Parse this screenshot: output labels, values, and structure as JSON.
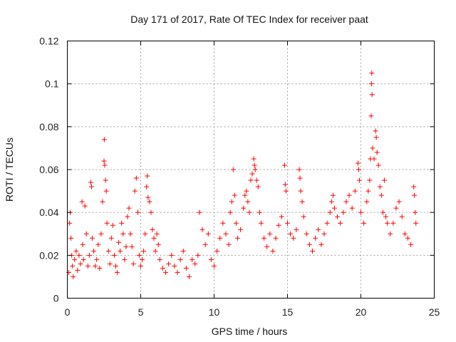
{
  "chart_data": {
    "type": "scatter",
    "title": "Day 171 of 2017, Rate Of TEC Index for receiver paat",
    "xlabel": "GPS time / hours",
    "ylabel": "ROTI / TECUs",
    "xlim": [
      0,
      25
    ],
    "ylim": [
      0,
      0.12
    ],
    "x_ticks": [
      0,
      5,
      10,
      15,
      20,
      25
    ],
    "x_tick_labels": [
      "0",
      "5",
      "10",
      "15",
      "20",
      "25"
    ],
    "y_ticks": [
      0,
      0.02,
      0.04,
      0.06,
      0.08,
      0.1,
      0.12
    ],
    "y_tick_labels": [
      "0",
      "0.02",
      "0.04",
      "0.06",
      "0.08",
      "0.1",
      "0.12"
    ],
    "grid": true,
    "marker": "plus",
    "color": "#ff0000",
    "points": [
      [
        0.1,
        0.012
      ],
      [
        0.15,
        0.035
      ],
      [
        0.2,
        0.04
      ],
      [
        0.25,
        0.028
      ],
      [
        0.3,
        0.02
      ],
      [
        0.35,
        0.015
      ],
      [
        0.4,
        0.01
      ],
      [
        0.5,
        0.018
      ],
      [
        0.6,
        0.022
      ],
      [
        0.7,
        0.013
      ],
      [
        0.8,
        0.02
      ],
      [
        0.9,
        0.016
      ],
      [
        1.0,
        0.045
      ],
      [
        1.05,
        0.025
      ],
      [
        1.1,
        0.018
      ],
      [
        1.2,
        0.043
      ],
      [
        1.3,
        0.03
      ],
      [
        1.4,
        0.015
      ],
      [
        1.5,
        0.02
      ],
      [
        1.6,
        0.054
      ],
      [
        1.65,
        0.052
      ],
      [
        1.7,
        0.028
      ],
      [
        1.8,
        0.022
      ],
      [
        1.9,
        0.015
      ],
      [
        2.0,
        0.018
      ],
      [
        2.1,
        0.025
      ],
      [
        2.2,
        0.014
      ],
      [
        2.3,
        0.03
      ],
      [
        2.4,
        0.045
      ],
      [
        2.5,
        0.064
      ],
      [
        2.52,
        0.074
      ],
      [
        2.55,
        0.062
      ],
      [
        2.6,
        0.055
      ],
      [
        2.65,
        0.05
      ],
      [
        2.7,
        0.035
      ],
      [
        2.8,
        0.022
      ],
      [
        2.9,
        0.016
      ],
      [
        3.0,
        0.028
      ],
      [
        3.1,
        0.034
      ],
      [
        3.2,
        0.02
      ],
      [
        3.3,
        0.015
      ],
      [
        3.4,
        0.012
      ],
      [
        3.5,
        0.026
      ],
      [
        3.6,
        0.022
      ],
      [
        3.7,
        0.035
      ],
      [
        3.8,
        0.03
      ],
      [
        3.9,
        0.018
      ],
      [
        4.0,
        0.024
      ],
      [
        4.1,
        0.038
      ],
      [
        4.2,
        0.042
      ],
      [
        4.3,
        0.03
      ],
      [
        4.4,
        0.024
      ],
      [
        4.5,
        0.016
      ],
      [
        4.6,
        0.05
      ],
      [
        4.7,
        0.056
      ],
      [
        4.8,
        0.04
      ],
      [
        4.9,
        0.02
      ],
      [
        5.0,
        0.015
      ],
      [
        5.1,
        0.018
      ],
      [
        5.2,
        0.022
      ],
      [
        5.3,
        0.03
      ],
      [
        5.4,
        0.052
      ],
      [
        5.45,
        0.057
      ],
      [
        5.5,
        0.047
      ],
      [
        5.6,
        0.045
      ],
      [
        5.7,
        0.04
      ],
      [
        5.8,
        0.032
      ],
      [
        5.9,
        0.028
      ],
      [
        6.0,
        0.022
      ],
      [
        6.1,
        0.03
      ],
      [
        6.2,
        0.025
      ],
      [
        6.3,
        0.018
      ],
      [
        6.5,
        0.014
      ],
      [
        6.7,
        0.012
      ],
      [
        6.9,
        0.016
      ],
      [
        7.1,
        0.02
      ],
      [
        7.3,
        0.015
      ],
      [
        7.5,
        0.012
      ],
      [
        7.7,
        0.018
      ],
      [
        7.9,
        0.022
      ],
      [
        8.1,
        0.014
      ],
      [
        8.3,
        0.01
      ],
      [
        8.5,
        0.018
      ],
      [
        8.7,
        0.016
      ],
      [
        8.9,
        0.02
      ],
      [
        9.0,
        0.04
      ],
      [
        9.2,
        0.032
      ],
      [
        9.4,
        0.025
      ],
      [
        9.6,
        0.03
      ],
      [
        9.8,
        0.018
      ],
      [
        10.0,
        0.015
      ],
      [
        10.2,
        0.022
      ],
      [
        10.4,
        0.028
      ],
      [
        10.6,
        0.035
      ],
      [
        10.8,
        0.03
      ],
      [
        11.0,
        0.025
      ],
      [
        11.1,
        0.04
      ],
      [
        11.2,
        0.045
      ],
      [
        11.3,
        0.06
      ],
      [
        11.4,
        0.048
      ],
      [
        11.5,
        0.035
      ],
      [
        11.6,
        0.028
      ],
      [
        11.8,
        0.032
      ],
      [
        12.0,
        0.042
      ],
      [
        12.1,
        0.048
      ],
      [
        12.2,
        0.05
      ],
      [
        12.3,
        0.045
      ],
      [
        12.4,
        0.04
      ],
      [
        12.5,
        0.055
      ],
      [
        12.6,
        0.058
      ],
      [
        12.7,
        0.065
      ],
      [
        12.75,
        0.062
      ],
      [
        12.8,
        0.06
      ],
      [
        12.9,
        0.055
      ],
      [
        13.0,
        0.052
      ],
      [
        13.1,
        0.04
      ],
      [
        13.2,
        0.035
      ],
      [
        13.4,
        0.028
      ],
      [
        13.6,
        0.024
      ],
      [
        13.8,
        0.03
      ],
      [
        14.0,
        0.022
      ],
      [
        14.2,
        0.028
      ],
      [
        14.4,
        0.034
      ],
      [
        14.6,
        0.038
      ],
      [
        14.8,
        0.062
      ],
      [
        14.85,
        0.053
      ],
      [
        14.9,
        0.05
      ],
      [
        15.0,
        0.035
      ],
      [
        15.2,
        0.03
      ],
      [
        15.4,
        0.028
      ],
      [
        15.6,
        0.032
      ],
      [
        15.8,
        0.06
      ],
      [
        15.85,
        0.056
      ],
      [
        15.9,
        0.05
      ],
      [
        16.0,
        0.045
      ],
      [
        16.1,
        0.038
      ],
      [
        16.3,
        0.03
      ],
      [
        16.5,
        0.025
      ],
      [
        16.7,
        0.022
      ],
      [
        16.9,
        0.028
      ],
      [
        17.1,
        0.032
      ],
      [
        17.3,
        0.025
      ],
      [
        17.5,
        0.03
      ],
      [
        17.7,
        0.035
      ],
      [
        17.9,
        0.04
      ],
      [
        18.0,
        0.045
      ],
      [
        18.1,
        0.048
      ],
      [
        18.2,
        0.042
      ],
      [
        18.4,
        0.038
      ],
      [
        18.6,
        0.035
      ],
      [
        18.8,
        0.04
      ],
      [
        19.0,
        0.045
      ],
      [
        19.2,
        0.048
      ],
      [
        19.4,
        0.042
      ],
      [
        19.6,
        0.05
      ],
      [
        19.8,
        0.063
      ],
      [
        19.85,
        0.06
      ],
      [
        19.9,
        0.055
      ],
      [
        20.0,
        0.04
      ],
      [
        20.2,
        0.035
      ],
      [
        20.4,
        0.045
      ],
      [
        20.5,
        0.05
      ],
      [
        20.6,
        0.055
      ],
      [
        20.65,
        0.065
      ],
      [
        20.7,
        0.085
      ],
      [
        20.72,
        0.1
      ],
      [
        20.74,
        0.105
      ],
      [
        20.76,
        0.095
      ],
      [
        20.8,
        0.07
      ],
      [
        20.9,
        0.065
      ],
      [
        21.0,
        0.078
      ],
      [
        21.05,
        0.075
      ],
      [
        21.1,
        0.068
      ],
      [
        21.2,
        0.062
      ],
      [
        21.3,
        0.052
      ],
      [
        21.4,
        0.048
      ],
      [
        21.5,
        0.04
      ],
      [
        21.6,
        0.055
      ],
      [
        21.7,
        0.038
      ],
      [
        21.8,
        0.035
      ],
      [
        22.0,
        0.03
      ],
      [
        22.2,
        0.035
      ],
      [
        22.4,
        0.042
      ],
      [
        22.6,
        0.045
      ],
      [
        22.8,
        0.038
      ],
      [
        23.0,
        0.03
      ],
      [
        23.2,
        0.028
      ],
      [
        23.4,
        0.025
      ],
      [
        23.6,
        0.052
      ],
      [
        23.65,
        0.048
      ],
      [
        23.7,
        0.04
      ],
      [
        23.75,
        0.035
      ]
    ]
  }
}
